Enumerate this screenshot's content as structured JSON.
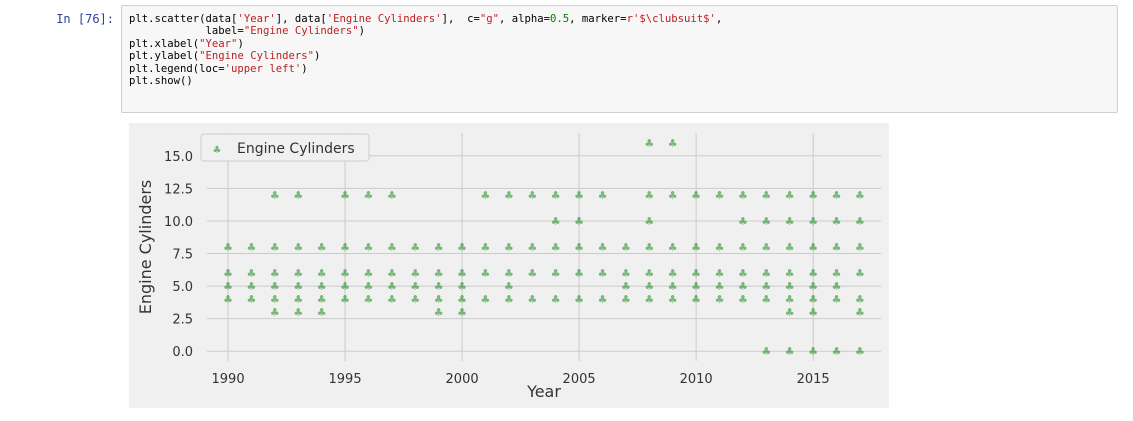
{
  "cell": {
    "prompt": "In [76]:",
    "code_lines": [
      [
        {
          "t": "plt.scatter(data["
        },
        {
          "t": "'Year'",
          "c": "str"
        },
        {
          "t": "], data["
        },
        {
          "t": "'Engine Cylinders'",
          "c": "str"
        },
        {
          "t": "],  c="
        },
        {
          "t": "\"g\"",
          "c": "str"
        },
        {
          "t": ", alpha="
        },
        {
          "t": "0.5",
          "c": "num"
        },
        {
          "t": ", marker="
        },
        {
          "t": "r'$\\clubsuit$'",
          "c": "str"
        },
        {
          "t": ","
        }
      ],
      [
        {
          "t": "            label="
        },
        {
          "t": "\"Engine Cylinders\"",
          "c": "str"
        },
        {
          "t": ")"
        }
      ],
      [
        {
          "t": "plt.xlabel("
        },
        {
          "t": "\"Year\"",
          "c": "str"
        },
        {
          "t": ")"
        }
      ],
      [
        {
          "t": "plt.ylabel("
        },
        {
          "t": "\"Engine Cylinders\"",
          "c": "str"
        },
        {
          "t": ")"
        }
      ],
      [
        {
          "t": "plt.legend(loc="
        },
        {
          "t": "'upper left'",
          "c": "str"
        },
        {
          "t": ")"
        }
      ],
      [
        {
          "t": "plt.show()"
        }
      ]
    ]
  },
  "chart_data": {
    "type": "scatter",
    "xlabel": "Year",
    "ylabel": "Engine Cylinders",
    "xlim": [
      1989.1,
      2017.9
    ],
    "ylim": [
      -0.75,
      16.75
    ],
    "xticks": [
      1990,
      1995,
      2000,
      2005,
      2010,
      2015
    ],
    "yticks": [
      0.0,
      2.5,
      5.0,
      7.5,
      10.0,
      12.5,
      15.0
    ],
    "ytick_labels": [
      "0.0",
      "2.5",
      "5.0",
      "7.5",
      "10.0",
      "12.5",
      "15.0"
    ],
    "grid": true,
    "legend_position": "upper left",
    "marker": "clubsuit",
    "color": "#008000",
    "background": "#f0f0f0",
    "series": [
      {
        "name": "Engine Cylinders",
        "points": [
          [
            1990,
            4
          ],
          [
            1990,
            5
          ],
          [
            1990,
            6
          ],
          [
            1990,
            8
          ],
          [
            1991,
            4
          ],
          [
            1991,
            5
          ],
          [
            1991,
            6
          ],
          [
            1991,
            8
          ],
          [
            1992,
            3
          ],
          [
            1992,
            4
          ],
          [
            1992,
            5
          ],
          [
            1992,
            6
          ],
          [
            1992,
            8
          ],
          [
            1992,
            12
          ],
          [
            1993,
            3
          ],
          [
            1993,
            4
          ],
          [
            1993,
            5
          ],
          [
            1993,
            6
          ],
          [
            1993,
            8
          ],
          [
            1993,
            12
          ],
          [
            1994,
            3
          ],
          [
            1994,
            4
          ],
          [
            1994,
            5
          ],
          [
            1994,
            6
          ],
          [
            1994,
            8
          ],
          [
            1995,
            4
          ],
          [
            1995,
            5
          ],
          [
            1995,
            6
          ],
          [
            1995,
            8
          ],
          [
            1995,
            12
          ],
          [
            1996,
            4
          ],
          [
            1996,
            5
          ],
          [
            1996,
            6
          ],
          [
            1996,
            8
          ],
          [
            1996,
            12
          ],
          [
            1997,
            4
          ],
          [
            1997,
            5
          ],
          [
            1997,
            6
          ],
          [
            1997,
            8
          ],
          [
            1997,
            12
          ],
          [
            1998,
            4
          ],
          [
            1998,
            5
          ],
          [
            1998,
            6
          ],
          [
            1998,
            8
          ],
          [
            1999,
            3
          ],
          [
            1999,
            4
          ],
          [
            1999,
            5
          ],
          [
            1999,
            6
          ],
          [
            1999,
            8
          ],
          [
            2000,
            3
          ],
          [
            2000,
            4
          ],
          [
            2000,
            5
          ],
          [
            2000,
            6
          ],
          [
            2000,
            8
          ],
          [
            2001,
            4
          ],
          [
            2001,
            6
          ],
          [
            2001,
            8
          ],
          [
            2001,
            12
          ],
          [
            2002,
            4
          ],
          [
            2002,
            5
          ],
          [
            2002,
            6
          ],
          [
            2002,
            8
          ],
          [
            2002,
            12
          ],
          [
            2003,
            4
          ],
          [
            2003,
            6
          ],
          [
            2003,
            8
          ],
          [
            2003,
            12
          ],
          [
            2004,
            4
          ],
          [
            2004,
            6
          ],
          [
            2004,
            8
          ],
          [
            2004,
            10
          ],
          [
            2004,
            12
          ],
          [
            2005,
            4
          ],
          [
            2005,
            6
          ],
          [
            2005,
            8
          ],
          [
            2005,
            10
          ],
          [
            2005,
            12
          ],
          [
            2006,
            4
          ],
          [
            2006,
            6
          ],
          [
            2006,
            8
          ],
          [
            2006,
            12
          ],
          [
            2007,
            4
          ],
          [
            2007,
            5
          ],
          [
            2007,
            6
          ],
          [
            2007,
            8
          ],
          [
            2008,
            4
          ],
          [
            2008,
            5
          ],
          [
            2008,
            6
          ],
          [
            2008,
            8
          ],
          [
            2008,
            10
          ],
          [
            2008,
            12
          ],
          [
            2008,
            16
          ],
          [
            2009,
            4
          ],
          [
            2009,
            5
          ],
          [
            2009,
            6
          ],
          [
            2009,
            8
          ],
          [
            2009,
            12
          ],
          [
            2009,
            16
          ],
          [
            2010,
            4
          ],
          [
            2010,
            5
          ],
          [
            2010,
            6
          ],
          [
            2010,
            8
          ],
          [
            2010,
            12
          ],
          [
            2011,
            4
          ],
          [
            2011,
            5
          ],
          [
            2011,
            6
          ],
          [
            2011,
            8
          ],
          [
            2011,
            12
          ],
          [
            2012,
            4
          ],
          [
            2012,
            5
          ],
          [
            2012,
            6
          ],
          [
            2012,
            8
          ],
          [
            2012,
            10
          ],
          [
            2012,
            12
          ],
          [
            2013,
            0
          ],
          [
            2013,
            4
          ],
          [
            2013,
            5
          ],
          [
            2013,
            6
          ],
          [
            2013,
            8
          ],
          [
            2013,
            10
          ],
          [
            2013,
            12
          ],
          [
            2014,
            0
          ],
          [
            2014,
            3
          ],
          [
            2014,
            4
          ],
          [
            2014,
            5
          ],
          [
            2014,
            6
          ],
          [
            2014,
            8
          ],
          [
            2014,
            10
          ],
          [
            2014,
            12
          ],
          [
            2015,
            0
          ],
          [
            2015,
            3
          ],
          [
            2015,
            4
          ],
          [
            2015,
            5
          ],
          [
            2015,
            6
          ],
          [
            2015,
            8
          ],
          [
            2015,
            10
          ],
          [
            2015,
            12
          ],
          [
            2016,
            0
          ],
          [
            2016,
            4
          ],
          [
            2016,
            5
          ],
          [
            2016,
            6
          ],
          [
            2016,
            8
          ],
          [
            2016,
            10
          ],
          [
            2016,
            12
          ],
          [
            2017,
            0
          ],
          [
            2017,
            3
          ],
          [
            2017,
            4
          ],
          [
            2017,
            6
          ],
          [
            2017,
            8
          ],
          [
            2017,
            10
          ],
          [
            2017,
            12
          ]
        ]
      }
    ]
  }
}
